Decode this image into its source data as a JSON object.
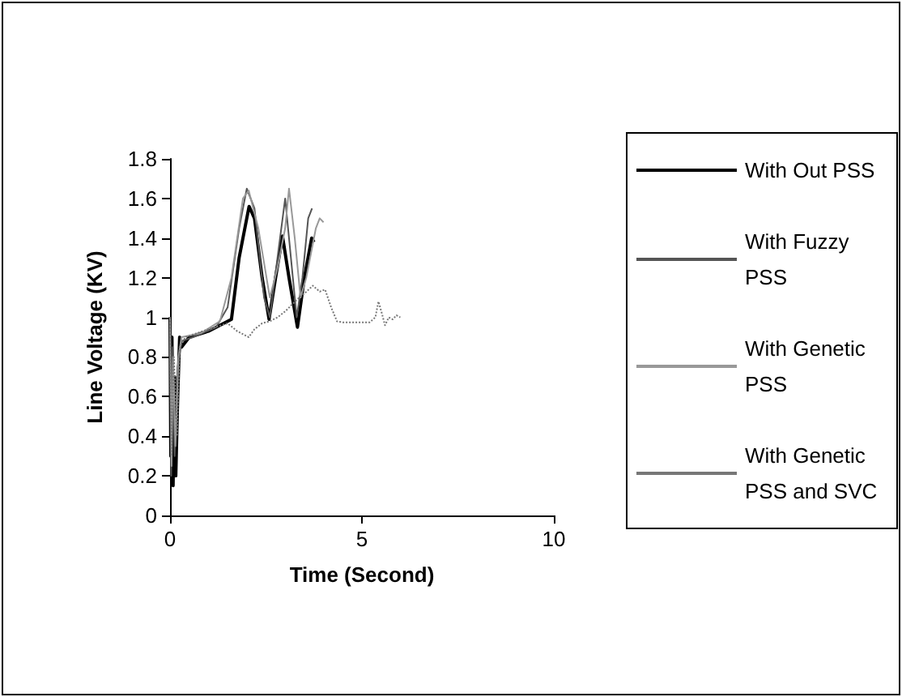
{
  "chart_data": {
    "type": "line",
    "xlabel": "Time (Second)",
    "ylabel": "Line Voltage (KV)",
    "xlim": [
      0,
      10
    ],
    "xticks": [
      0,
      5,
      10
    ],
    "ylim": [
      0,
      1.8
    ],
    "yticks": [
      0,
      0.2,
      0.4,
      0.6,
      0.8,
      1,
      1.2,
      1.4,
      1.6,
      1.8
    ],
    "grid": false,
    "legend": "right",
    "marker": "none",
    "series": [
      {
        "name": "With Out PSS",
        "color": "#000000",
        "line_style": "solid",
        "x": [
          0,
          0.02,
          0.05,
          0.08,
          0.12,
          0.15,
          0.2,
          0.25,
          0.3,
          0.5,
          1.0,
          1.6,
          1.8,
          2.06,
          2.2,
          2.4,
          2.58,
          2.75,
          2.93,
          3.1,
          3.32,
          3.5,
          3.69,
          3.75
        ],
        "values": [
          1,
          0.3,
          0.9,
          0.15,
          0.7,
          0.2,
          0.6,
          0.9,
          0.85,
          0.9,
          0.93,
          0.99,
          1.3,
          1.56,
          1.5,
          1.2,
          0.99,
          1.2,
          1.41,
          1.2,
          0.95,
          1.2,
          1.4,
          1.38
        ]
      },
      {
        "name": "With Fuzzy PSS",
        "color": "#555555",
        "line_style": "solid",
        "x": [
          0,
          0.03,
          0.07,
          0.12,
          0.2,
          0.3,
          0.6,
          1.2,
          1.5,
          1.8,
          2.0,
          2.2,
          2.45,
          2.6,
          2.8,
          3.0,
          3.15,
          3.3,
          3.45,
          3.6,
          3.7
        ],
        "values": [
          1,
          0.2,
          0.85,
          0.3,
          0.75,
          0.88,
          0.9,
          0.95,
          1.05,
          1.45,
          1.65,
          1.55,
          1.1,
          1.0,
          1.3,
          1.6,
          1.3,
          1.0,
          1.2,
          1.5,
          1.55
        ]
      },
      {
        "name": "With Genetic PSS",
        "color": "#999999",
        "line_style": "solid",
        "x": [
          0,
          0.04,
          0.08,
          0.14,
          0.22,
          0.3,
          0.8,
          1.3,
          1.6,
          1.9,
          2.05,
          2.3,
          2.6,
          2.8,
          3.0,
          3.1,
          3.25,
          3.4,
          3.55,
          3.8,
          3.9,
          4.0
        ],
        "values": [
          1,
          0.25,
          0.8,
          0.35,
          0.8,
          0.9,
          0.92,
          0.98,
          1.2,
          1.6,
          1.64,
          1.45,
          1.1,
          1.25,
          1.45,
          1.65,
          1.4,
          1.1,
          1.2,
          1.45,
          1.5,
          1.48
        ]
      },
      {
        "name": "With Genetic PSS and SVC",
        "color": "#777777",
        "line_style": "dotted",
        "x": [
          0,
          0.03,
          0.1,
          0.18,
          0.25,
          0.4,
          1.0,
          1.5,
          1.75,
          2.05,
          2.2,
          2.4,
          2.6,
          2.8,
          3.0,
          3.31,
          3.5,
          3.72,
          3.9,
          4.04,
          4.2,
          4.35,
          4.5,
          5.2,
          5.35,
          5.43,
          5.52,
          5.6,
          5.7,
          5.8,
          5.9,
          6.0
        ],
        "values": [
          1,
          0.3,
          0.8,
          0.4,
          0.85,
          0.9,
          0.94,
          0.97,
          0.93,
          0.9,
          0.94,
          0.97,
          0.98,
          1.0,
          1.03,
          1.09,
          1.12,
          1.16,
          1.13,
          1.14,
          1.05,
          0.98,
          0.975,
          0.975,
          1.0,
          1.08,
          1.02,
          0.96,
          1.0,
          0.99,
          1.01,
          1.0
        ]
      }
    ]
  }
}
